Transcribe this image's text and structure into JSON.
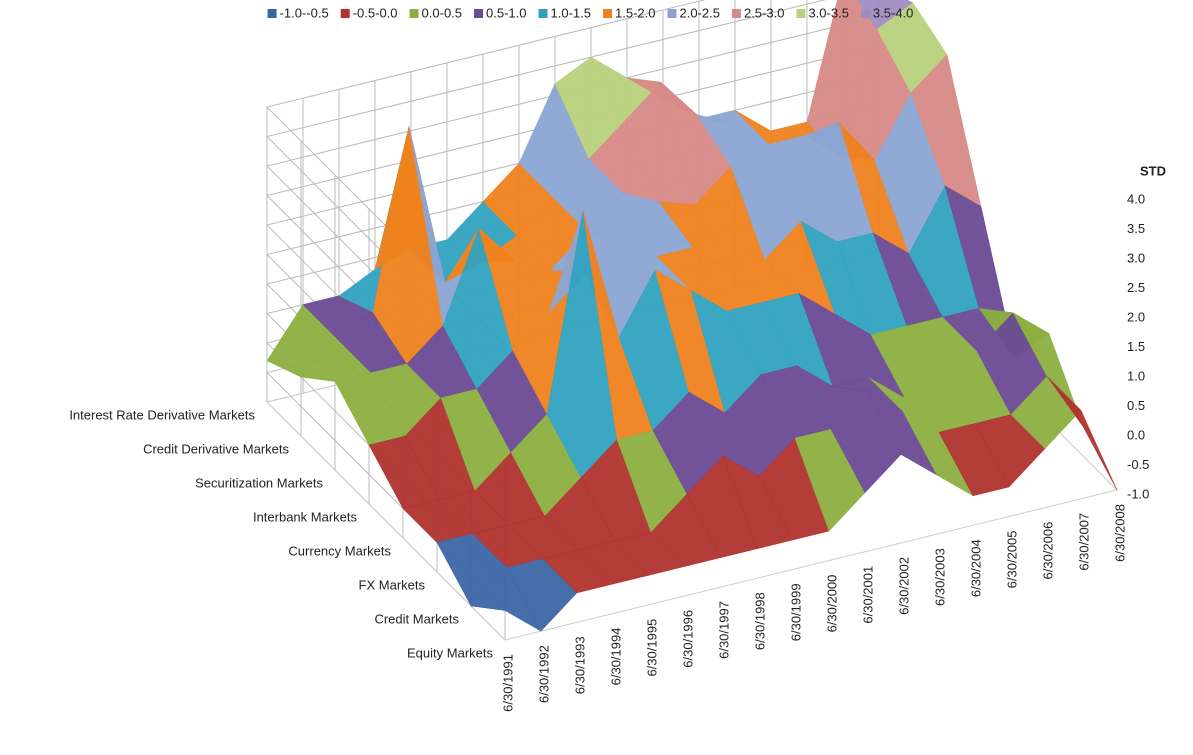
{
  "chart_data": {
    "type": "surface",
    "z_label": "STD",
    "bands": [
      {
        "name": "-1.0--0.5",
        "color": "#3b66a6"
      },
      {
        "name": "-0.5-0.0",
        "color": "#b0312e"
      },
      {
        "name": "0.0-0.5",
        "color": "#8caf3f"
      },
      {
        "name": "0.5-1.0",
        "color": "#6a4a93"
      },
      {
        "name": "1.0-1.5",
        "color": "#30a2c0"
      },
      {
        "name": "1.5-2.0",
        "color": "#ef821e"
      },
      {
        "name": "2.0-2.5",
        "color": "#8ba5d3"
      },
      {
        "name": "2.5-3.0",
        "color": "#d78a87"
      },
      {
        "name": "3.0-3.5",
        "color": "#b8d17c"
      },
      {
        "name": "3.5-4.0",
        "color": "#9f8dc1"
      }
    ],
    "categories": [
      "6/30/1991",
      "6/30/1992",
      "6/30/1993",
      "6/30/1994",
      "6/30/1995",
      "6/30/1996",
      "6/30/1997",
      "6/30/1998",
      "6/30/1999",
      "6/30/2000",
      "6/30/2001",
      "6/30/2002",
      "6/30/2003",
      "6/30/2004",
      "6/30/2005",
      "6/30/2006",
      "6/30/2007",
      "6/30/2008"
    ],
    "series": [
      {
        "name": "Interest Rate  Derivative Markets",
        "values": [
          -0.3,
          0.5,
          0.5,
          0.8,
          1.0,
          1.0,
          1.5,
          2.0,
          3.2,
          3.5,
          3.0,
          2.5,
          2.0,
          2.0,
          1.5,
          1.5,
          3.8,
          3.5
        ]
      },
      {
        "name": "Credit Derivative Markets",
        "values": [
          0.0,
          0.5,
          0.8,
          3.8,
          1.0,
          1.2,
          1.5,
          2.0,
          2.5,
          3.0,
          3.5,
          2.8,
          2.5,
          2.0,
          2.0,
          1.5,
          3.5,
          3.8
        ]
      },
      {
        "name": "Securitization Markets",
        "values": [
          0.5,
          0.5,
          0.5,
          1.0,
          2.5,
          1.8,
          1.5,
          2.0,
          2.5,
          2.2,
          2.0,
          2.5,
          2.0,
          2.5,
          2.8,
          2.0,
          3.0,
          3.5
        ]
      },
      {
        "name": "Interbank Markets",
        "values": [
          0.0,
          0.0,
          0.5,
          0.5,
          1.0,
          1.5,
          2.0,
          2.5,
          2.0,
          2.0,
          1.5,
          1.5,
          2.0,
          1.5,
          1.5,
          1.0,
          2.0,
          1.5
        ]
      },
      {
        "name": "Currency Markets",
        "values": [
          -0.5,
          -0.5,
          -0.5,
          0.0,
          0.5,
          3.8,
          1.5,
          2.5,
          2.0,
          1.5,
          1.5,
          1.5,
          1.0,
          0.5,
          0.5,
          0.5,
          0.5,
          -0.5
        ]
      },
      {
        "name": "FX Markets",
        "values": [
          -0.5,
          -0.5,
          -0.5,
          -0.5,
          0.0,
          0.5,
          0.5,
          1.0,
          0.5,
          1.0,
          1.0,
          0.5,
          0.5,
          0.0,
          0.0,
          0.5,
          1.0,
          0.5
        ]
      },
      {
        "name": "Credit Markets",
        "values": [
          -1.0,
          -0.5,
          -0.5,
          -0.5,
          -0.5,
          -0.5,
          0.0,
          0.5,
          0.0,
          0.5,
          0.5,
          1.0,
          0.5,
          0.0,
          0.0,
          0.0,
          0.5,
          -0.5
        ]
      },
      {
        "name": "Equity Markets",
        "values": [
          -0.5,
          -1.0,
          -0.5,
          -0.5,
          -0.5,
          -0.5,
          -0.5,
          -0.5,
          -0.5,
          -0.5,
          0.0,
          0.5,
          0.0,
          -0.5,
          -0.5,
          0.0,
          0.5,
          -1.0
        ]
      }
    ],
    "zlim": [
      -1,
      4
    ],
    "zticks": [
      {
        "value": -1,
        "label": "-1.0"
      },
      {
        "value": -0.5,
        "label": "-0.5"
      },
      {
        "value": 0,
        "label": "0.0"
      },
      {
        "value": 0.5,
        "label": "0.5"
      },
      {
        "value": 1,
        "label": "1.0"
      },
      {
        "value": 1.5,
        "label": "1.5"
      },
      {
        "value": 2,
        "label": "2.0"
      },
      {
        "value": 2.5,
        "label": "2.5"
      },
      {
        "value": 3,
        "label": "3.0"
      },
      {
        "value": 3.5,
        "label": "3.5"
      },
      {
        "value": 4,
        "label": "4.0"
      }
    ],
    "grid": true
  }
}
